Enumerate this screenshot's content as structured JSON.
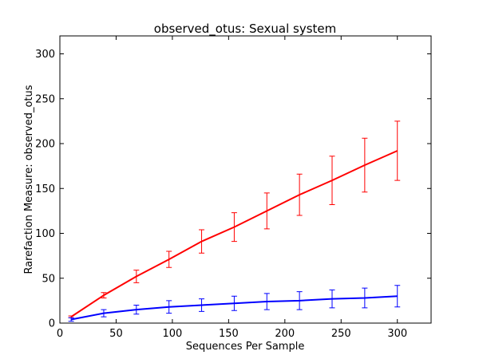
{
  "chart_data": {
    "type": "line",
    "title": "observed_otus: Sexual system",
    "xlabel": "Sequences Per Sample",
    "ylabel": "Rarefaction Measure: observed_otus",
    "xlim": [
      0,
      330
    ],
    "ylim": [
      0,
      320
    ],
    "xticks": [
      0,
      50,
      100,
      150,
      200,
      250,
      300
    ],
    "yticks": [
      0,
      50,
      100,
      150,
      200,
      250,
      300
    ],
    "grid": false,
    "series": [
      {
        "color": "#ff0000",
        "x": [
          10,
          39,
          68,
          97,
          126,
          155,
          184,
          213,
          242,
          271,
          300
        ],
        "y": [
          7,
          31,
          52,
          71,
          91,
          107,
          125,
          143,
          159,
          176,
          192
        ],
        "err": [
          1,
          3,
          7,
          9,
          13,
          16,
          20,
          23,
          27,
          30,
          33
        ]
      },
      {
        "color": "#0000ff",
        "x": [
          10,
          39,
          68,
          97,
          126,
          155,
          184,
          213,
          242,
          271,
          300
        ],
        "y": [
          4,
          11,
          15,
          18,
          20,
          22,
          24,
          25,
          27,
          28,
          30
        ],
        "err": [
          2,
          4,
          5,
          7,
          7,
          8,
          9,
          10,
          10,
          11,
          12
        ]
      }
    ]
  }
}
